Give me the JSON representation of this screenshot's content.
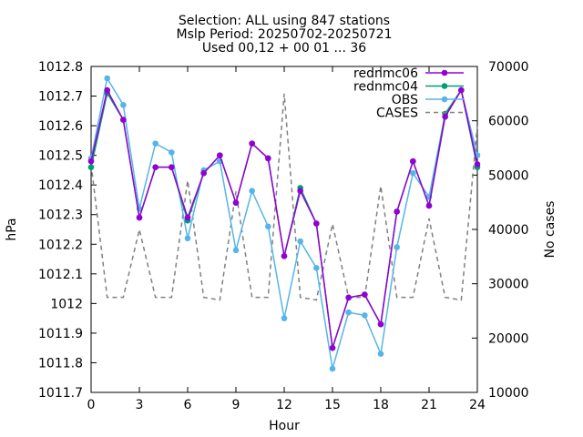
{
  "title_lines": [
    "Selection: ALL using   847 stations",
    "Mslp   Period: 20250702-20250721",
    "Used 00,12 + 00 01 ... 36"
  ],
  "chart_data": {
    "type": "line",
    "title": "Selection: ALL using   847 stations / Mslp   Period: 20250702-20250721 / Used 00,12 + 00 01 ... 36",
    "xlabel": "Hour",
    "ylabel": "hPa",
    "y2label": "No cases",
    "xlim": [
      0,
      24
    ],
    "ylim": [
      1011.7,
      1012.8
    ],
    "y2lim": [
      10000,
      70000
    ],
    "xticks": [
      0,
      3,
      6,
      9,
      12,
      15,
      18,
      21,
      24
    ],
    "yticks": [
      1011.7,
      1011.8,
      1011.9,
      1012,
      1012.1,
      1012.2,
      1012.3,
      1012.4,
      1012.5,
      1012.6,
      1012.7,
      1012.8
    ],
    "ytick_labels": [
      "1011.7",
      "1011.8",
      "1011.9",
      "1012",
      "1012.1",
      "1012.2",
      "1012.3",
      "1012.4",
      "1012.5",
      "1012.6",
      "1012.7",
      "1012.8"
    ],
    "y2ticks": [
      10000,
      20000,
      30000,
      40000,
      50000,
      60000,
      70000
    ],
    "grid": false,
    "legend_position": "top-right",
    "x": [
      0,
      1,
      2,
      3,
      4,
      5,
      6,
      7,
      8,
      9,
      10,
      11,
      12,
      13,
      14,
      15,
      16,
      17,
      18,
      19,
      20,
      21,
      22,
      23,
      24
    ],
    "series": [
      {
        "name": "rednmc06",
        "axis": "y1",
        "color": "#9400d3",
        "marker": "circle",
        "values": [
          1012.48,
          1012.72,
          1012.62,
          1012.29,
          1012.46,
          1012.46,
          1012.29,
          1012.44,
          1012.5,
          1012.34,
          1012.54,
          1012.49,
          1012.16,
          1012.38,
          1012.27,
          1011.85,
          1012.02,
          1012.03,
          1011.93,
          1012.31,
          1012.48,
          1012.33,
          1012.63,
          1012.72,
          1012.47
        ]
      },
      {
        "name": "rednmc04",
        "axis": "y1",
        "color": "#009e73",
        "marker": "circle",
        "values": [
          1012.46,
          1012.71,
          1012.62,
          1012.29,
          1012.46,
          1012.46,
          1012.28,
          1012.44,
          1012.5,
          1012.34,
          1012.54,
          1012.49,
          1012.16,
          1012.39,
          1012.27,
          1011.85,
          1012.02,
          1012.03,
          1011.93,
          1012.31,
          1012.48,
          1012.33,
          1012.64,
          1012.72,
          1012.46
        ]
      },
      {
        "name": "OBS",
        "axis": "y1",
        "color": "#56b4e9",
        "marker": "circle",
        "values": [
          1012.49,
          1012.76,
          1012.67,
          1012.32,
          1012.54,
          1012.51,
          1012.22,
          1012.45,
          1012.48,
          1012.18,
          1012.38,
          1012.26,
          1011.95,
          1012.21,
          1012.12,
          1011.78,
          1011.97,
          1011.96,
          1011.83,
          1012.19,
          1012.44,
          1012.36,
          1012.64,
          1012.72,
          1012.5
        ]
      },
      {
        "name": "CASES",
        "axis": "y2",
        "color": "#808080",
        "dash": "dashed",
        "values": [
          52000,
          27500,
          27500,
          40000,
          27500,
          27500,
          49000,
          27500,
          27000,
          47000,
          27500,
          27500,
          65000,
          27500,
          27000,
          41000,
          27500,
          27500,
          48000,
          27500,
          27500,
          42000,
          27500,
          27000,
          59000
        ]
      }
    ]
  }
}
